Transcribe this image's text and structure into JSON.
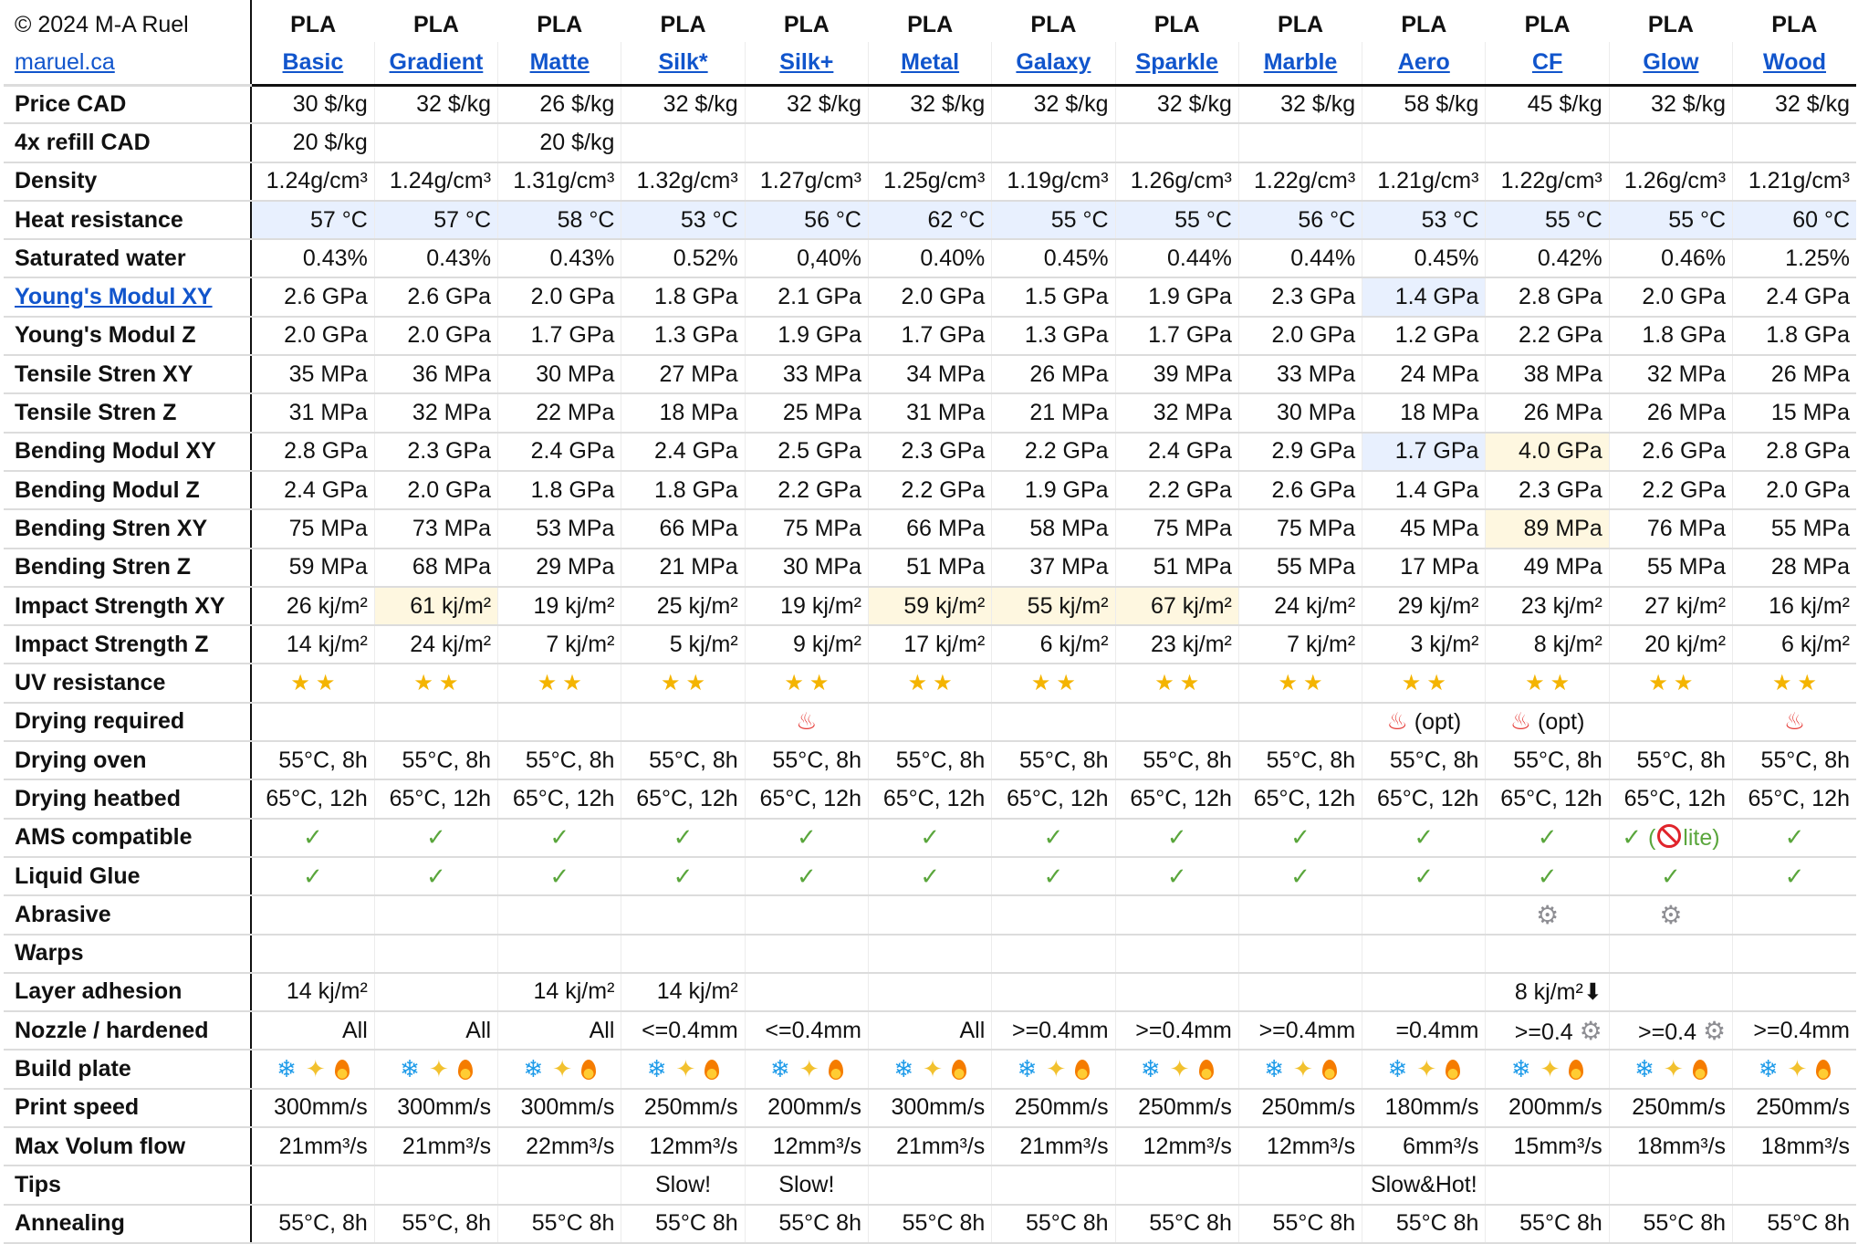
{
  "header": {
    "copyright": "© 2024 M-A Ruel",
    "site_link": "maruel.ca",
    "type_label": "PLA",
    "materials": [
      "Basic",
      "Gradient",
      "Matte",
      "Silk*",
      "Silk+",
      "Metal",
      "Galaxy",
      "Sparkle",
      "Marble",
      "Aero",
      "CF",
      "Glow",
      "Wood"
    ]
  },
  "colors": {
    "link": "#1155cc",
    "highlight_blue": "#e8f0fe",
    "highlight_yellow": "#fef7e0",
    "check_green": "#5aa63c",
    "star_gold": "#f4b400"
  },
  "rows": [
    {
      "label": "Price CAD",
      "cells": [
        "30 $/kg",
        "32 $/kg",
        "26 $/kg",
        "32 $/kg",
        "32 $/kg",
        "32 $/kg",
        "32 $/kg",
        "32 $/kg",
        "32 $/kg",
        "58 $/kg",
        "45 $/kg",
        "32 $/kg",
        "32 $/kg"
      ]
    },
    {
      "label": "4x refill CAD",
      "cells": [
        "20 $/kg",
        "",
        "20 $/kg",
        "",
        "",
        "",
        "",
        "",
        "",
        "",
        "",
        "",
        ""
      ]
    },
    {
      "label": "Density",
      "cells": [
        "1.24g/cm³",
        "1.24g/cm³",
        "1.31g/cm³",
        "1.32g/cm³",
        "1.27g/cm³",
        "1.25g/cm³",
        "1.19g/cm³",
        "1.26g/cm³",
        "1.22g/cm³",
        "1.21g/cm³",
        "1.22g/cm³",
        "1.26g/cm³",
        "1.21g/cm³"
      ]
    },
    {
      "label": "Heat resistance",
      "highlight_row": "blue",
      "cells": [
        "57 °C",
        "57 °C",
        "58 °C",
        "53 °C",
        "56 °C",
        "62 °C",
        "55 °C",
        "55 °C",
        "56 °C",
        "53 °C",
        "55 °C",
        "55 °C",
        "60 °C"
      ]
    },
    {
      "label": "Saturated water",
      "cells": [
        "0.43%",
        "0.43%",
        "0.43%",
        "0.52%",
        "0,40%",
        "0.40%",
        "0.45%",
        "0.44%",
        "0.44%",
        "0.45%",
        "0.42%",
        "0.46%",
        "1.25%"
      ]
    },
    {
      "label": "Young's Modul XY",
      "link": true,
      "highlight": {
        "9": "blue"
      },
      "cells": [
        "2.6 GPa",
        "2.6 GPa",
        "2.0 GPa",
        "1.8 GPa",
        "2.1 GPa",
        "2.0 GPa",
        "1.5 GPa",
        "1.9 GPa",
        "2.3 GPa",
        "1.4 GPa",
        "2.8 GPa",
        "2.0 GPa",
        "2.4 GPa"
      ]
    },
    {
      "label": "Young's Modul Z",
      "cells": [
        "2.0 GPa",
        "2.0 GPa",
        "1.7 GPa",
        "1.3 GPa",
        "1.9 GPa",
        "1.7 GPa",
        "1.3 GPa",
        "1.7 GPa",
        "2.0 GPa",
        "1.2 GPa",
        "2.2 GPa",
        "1.8 GPa",
        "1.8 GPa"
      ]
    },
    {
      "label": "Tensile Stren XY",
      "cells": [
        "35 MPa",
        "36 MPa",
        "30 MPa",
        "27 MPa",
        "33 MPa",
        "34 MPa",
        "26 MPa",
        "39 MPa",
        "33 MPa",
        "24 MPa",
        "38 MPa",
        "32 MPa",
        "26 MPa"
      ]
    },
    {
      "label": "Tensile Stren Z",
      "cells": [
        "31 MPa",
        "32 MPa",
        "22 MPa",
        "18 MPa",
        "25 MPa",
        "31 MPa",
        "21 MPa",
        "32 MPa",
        "30 MPa",
        "18 MPa",
        "26 MPa",
        "26 MPa",
        "15 MPa"
      ]
    },
    {
      "label": "Bending Modul XY",
      "highlight": {
        "9": "blue",
        "10": "yellow"
      },
      "cells": [
        "2.8 GPa",
        "2.3 GPa",
        "2.4 GPa",
        "2.4 GPa",
        "2.5 GPa",
        "2.3 GPa",
        "2.2 GPa",
        "2.4 GPa",
        "2.9 GPa",
        "1.7 GPa",
        "4.0 GPa",
        "2.6 GPa",
        "2.8 GPa"
      ]
    },
    {
      "label": "Bending Modul Z",
      "cells": [
        "2.4 GPa",
        "2.0 GPa",
        "1.8 GPa",
        "1.8 GPa",
        "2.2 GPa",
        "2.2 GPa",
        "1.9 GPa",
        "2.2 GPa",
        "2.6 GPa",
        "1.4 GPa",
        "2.3 GPa",
        "2.2 GPa",
        "2.0 GPa"
      ]
    },
    {
      "label": "Bending Stren XY",
      "highlight": {
        "10": "yellow"
      },
      "cells": [
        "75 MPa",
        "73 MPa",
        "53 MPa",
        "66 MPa",
        "75 MPa",
        "66 MPa",
        "58 MPa",
        "75 MPa",
        "75 MPa",
        "45 MPa",
        "89 MPa",
        "76 MPa",
        "55 MPa"
      ]
    },
    {
      "label": "Bending Stren Z",
      "cells": [
        "59 MPa",
        "68 MPa",
        "29 MPa",
        "21 MPa",
        "30 MPa",
        "51 MPa",
        "37 MPa",
        "51 MPa",
        "55 MPa",
        "17 MPa",
        "49 MPa",
        "55 MPa",
        "28 MPa"
      ]
    },
    {
      "label": "Impact Strength XY",
      "highlight": {
        "1": "yellow",
        "5": "yellow",
        "6": "yellow",
        "7": "yellow"
      },
      "cells": [
        "26 kj/m²",
        "61 kj/m²",
        "19 kj/m²",
        "25 kj/m²",
        "19 kj/m²",
        "59 kj/m²",
        "55 kj/m²",
        "67 kj/m²",
        "24 kj/m²",
        "29 kj/m²",
        "23 kj/m²",
        "27 kj/m²",
        "16 kj/m²"
      ]
    },
    {
      "label": "Impact Strength Z",
      "cells": [
        "14 kj/m²",
        "24 kj/m²",
        "7 kj/m²",
        "5 kj/m²",
        "9 kj/m²",
        "17 kj/m²",
        "6 kj/m²",
        "23 kj/m²",
        "7 kj/m²",
        "3 kj/m²",
        "8 kj/m²",
        "20 kj/m²",
        "6 kj/m²"
      ]
    },
    {
      "label": "UV resistance",
      "cells": [
        {
          "icon": "star",
          "count": 2
        },
        {
          "icon": "star",
          "count": 2
        },
        {
          "icon": "star",
          "count": 2
        },
        {
          "icon": "star",
          "count": 2
        },
        {
          "icon": "star",
          "count": 2
        },
        {
          "icon": "star",
          "count": 2
        },
        {
          "icon": "star",
          "count": 2
        },
        {
          "icon": "star",
          "count": 2
        },
        {
          "icon": "star",
          "count": 2
        },
        {
          "icon": "star",
          "count": 2
        },
        {
          "icon": "star",
          "count": 2
        },
        {
          "icon": "star",
          "count": 2
        },
        {
          "icon": "star",
          "count": 2
        }
      ]
    },
    {
      "label": "Drying required",
      "cells": [
        "",
        "",
        "",
        "",
        {
          "icon": "hot-springs"
        },
        "",
        "",
        "",
        "",
        {
          "icon": "hot-springs",
          "text": "(opt)"
        },
        {
          "icon": "hot-springs",
          "text": "(opt)"
        },
        "",
        {
          "icon": "hot-springs"
        }
      ]
    },
    {
      "label": "Drying oven",
      "cells": [
        "55°C, 8h",
        "55°C, 8h",
        "55°C, 8h",
        "55°C, 8h",
        "55°C, 8h",
        "55°C, 8h",
        "55°C, 8h",
        "55°C, 8h",
        "55°C, 8h",
        "55°C, 8h",
        "55°C, 8h",
        "55°C, 8h",
        "55°C, 8h"
      ]
    },
    {
      "label": "Drying heatbed",
      "cells": [
        "65°C, 12h",
        "65°C, 12h",
        "65°C, 12h",
        "65°C, 12h",
        "65°C, 12h",
        "65°C, 12h",
        "65°C, 12h",
        "65°C, 12h",
        "65°C, 12h",
        "65°C, 12h",
        "65°C, 12h",
        "65°C, 12h",
        "65°C, 12h"
      ]
    },
    {
      "label": "AMS compatible",
      "cells": [
        {
          "icon": "check"
        },
        {
          "icon": "check"
        },
        {
          "icon": "check"
        },
        {
          "icon": "check"
        },
        {
          "icon": "check"
        },
        {
          "icon": "check"
        },
        {
          "icon": "check"
        },
        {
          "icon": "check"
        },
        {
          "icon": "check"
        },
        {
          "icon": "check"
        },
        {
          "icon": "check"
        },
        {
          "icon": "check",
          "note_icon": "prohibited",
          "note": "lite"
        },
        {
          "icon": "check"
        }
      ]
    },
    {
      "label": "Liquid Glue",
      "cells": [
        {
          "icon": "check"
        },
        {
          "icon": "check"
        },
        {
          "icon": "check"
        },
        {
          "icon": "check"
        },
        {
          "icon": "check"
        },
        {
          "icon": "check"
        },
        {
          "icon": "check"
        },
        {
          "icon": "check"
        },
        {
          "icon": "check"
        },
        {
          "icon": "check"
        },
        {
          "icon": "check"
        },
        {
          "icon": "check"
        },
        {
          "icon": "check"
        }
      ]
    },
    {
      "label": "Abrasive",
      "cells": [
        "",
        "",
        "",
        "",
        "",
        "",
        "",
        "",
        "",
        "",
        {
          "icon": "gear"
        },
        {
          "icon": "gear"
        },
        ""
      ]
    },
    {
      "label": "Warps",
      "cells": [
        "",
        "",
        "",
        "",
        "",
        "",
        "",
        "",
        "",
        "",
        "",
        "",
        ""
      ]
    },
    {
      "label": "Layer adhesion",
      "cells": [
        "14 kj/m²",
        "",
        "14 kj/m²",
        "14 kj/m²",
        "",
        "",
        "",
        "",
        "",
        "",
        "8 kj/m²⬇",
        "",
        ""
      ]
    },
    {
      "label": "Nozzle / hardened",
      "cells": [
        "All",
        "All",
        "All",
        "<=0.4mm",
        "<=0.4mm",
        "All",
        ">=0.4mm",
        ">=0.4mm",
        ">=0.4mm",
        "=0.4mm",
        {
          "text": ">=0.4",
          "icon_after": "gear"
        },
        {
          "text": ">=0.4",
          "icon_after": "gear"
        },
        ">=0.4mm"
      ]
    },
    {
      "label": "Build plate",
      "cells": [
        {
          "icons": [
            "snowflake",
            "sparkles",
            "fire"
          ]
        },
        {
          "icons": [
            "snowflake",
            "sparkles",
            "fire"
          ]
        },
        {
          "icons": [
            "snowflake",
            "sparkles",
            "fire"
          ]
        },
        {
          "icons": [
            "snowflake",
            "sparkles",
            "fire"
          ]
        },
        {
          "icons": [
            "snowflake",
            "sparkles",
            "fire"
          ]
        },
        {
          "icons": [
            "snowflake",
            "sparkles",
            "fire"
          ]
        },
        {
          "icons": [
            "snowflake",
            "sparkles",
            "fire"
          ]
        },
        {
          "icons": [
            "snowflake",
            "sparkles",
            "fire"
          ]
        },
        {
          "icons": [
            "snowflake",
            "sparkles",
            "fire"
          ]
        },
        {
          "icons": [
            "snowflake",
            "sparkles",
            "fire"
          ]
        },
        {
          "icons": [
            "snowflake",
            "sparkles",
            "fire"
          ]
        },
        {
          "icons": [
            "snowflake",
            "sparkles",
            "fire"
          ]
        },
        {
          "icons": [
            "snowflake",
            "sparkles",
            "fire"
          ]
        }
      ]
    },
    {
      "label": "Print speed",
      "cells": [
        "300mm/s",
        "300mm/s",
        "300mm/s",
        "250mm/s",
        "200mm/s",
        "300mm/s",
        "250mm/s",
        "250mm/s",
        "250mm/s",
        "180mm/s",
        "200mm/s",
        "250mm/s",
        "250mm/s"
      ]
    },
    {
      "label": "Max Volum flow",
      "cells": [
        "21mm³/s",
        "21mm³/s",
        "22mm³/s",
        "12mm³/s",
        "12mm³/s",
        "21mm³/s",
        "21mm³/s",
        "12mm³/s",
        "12mm³/s",
        "6mm³/s",
        "15mm³/s",
        "18mm³/s",
        "18mm³/s"
      ]
    },
    {
      "label": "Tips",
      "center": true,
      "cells": [
        "",
        "",
        "",
        "Slow!",
        "Slow!",
        "",
        "",
        "",
        "",
        "Slow&Hot!",
        "",
        "",
        ""
      ]
    },
    {
      "label": "Annealing",
      "cells": [
        "55°C, 8h",
        "55°C, 8h",
        "55°C 8h",
        "55°C 8h",
        "55°C 8h",
        "55°C 8h",
        "55°C 8h",
        "55°C 8h",
        "55°C 8h",
        "55°C 8h",
        "55°C 8h",
        "55°C 8h",
        "55°C 8h"
      ]
    }
  ]
}
